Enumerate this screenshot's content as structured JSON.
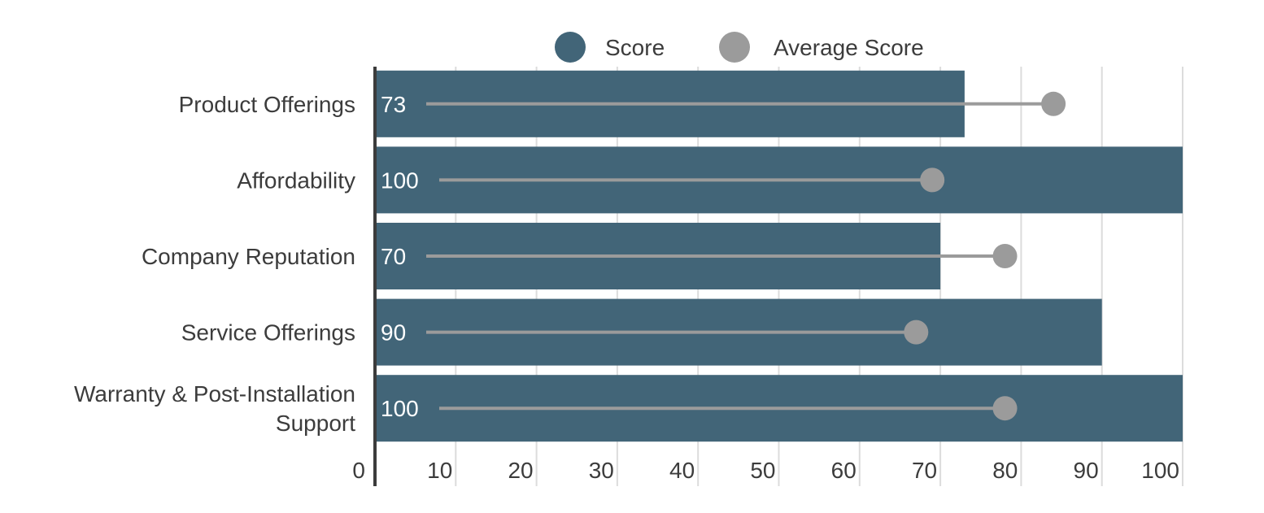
{
  "chart_data": {
    "type": "bar",
    "orientation": "horizontal",
    "categories": [
      [
        "Product Offerings"
      ],
      [
        "Affordability"
      ],
      [
        "Company Reputation"
      ],
      [
        "Service Offerings"
      ],
      [
        "Warranty & Post-Installation",
        "Support"
      ]
    ],
    "series": [
      {
        "name": "Score",
        "kind": "bar",
        "values": [
          73,
          100,
          70,
          90,
          100
        ],
        "color": "#426578"
      },
      {
        "name": "Average Score",
        "kind": "lollipop",
        "values": [
          84,
          69,
          78,
          67,
          78
        ],
        "color": "#9b9b9b"
      }
    ],
    "data_labels": [
      "73",
      "100",
      "70",
      "90",
      "100"
    ],
    "xlim": [
      0,
      100
    ],
    "xticks": [
      0,
      10,
      20,
      30,
      40,
      50,
      60,
      70,
      80,
      90,
      100
    ],
    "xtick_labels": [
      "0",
      "10",
      "20",
      "30",
      "40",
      "50",
      "60",
      "70",
      "80",
      "90",
      "100"
    ],
    "legend": {
      "placement": "top",
      "items": [
        "Score",
        "Average Score"
      ]
    },
    "grid": {
      "vertical": true,
      "color": "#dcdcdc"
    },
    "axis_color": "#3c3c3c"
  }
}
